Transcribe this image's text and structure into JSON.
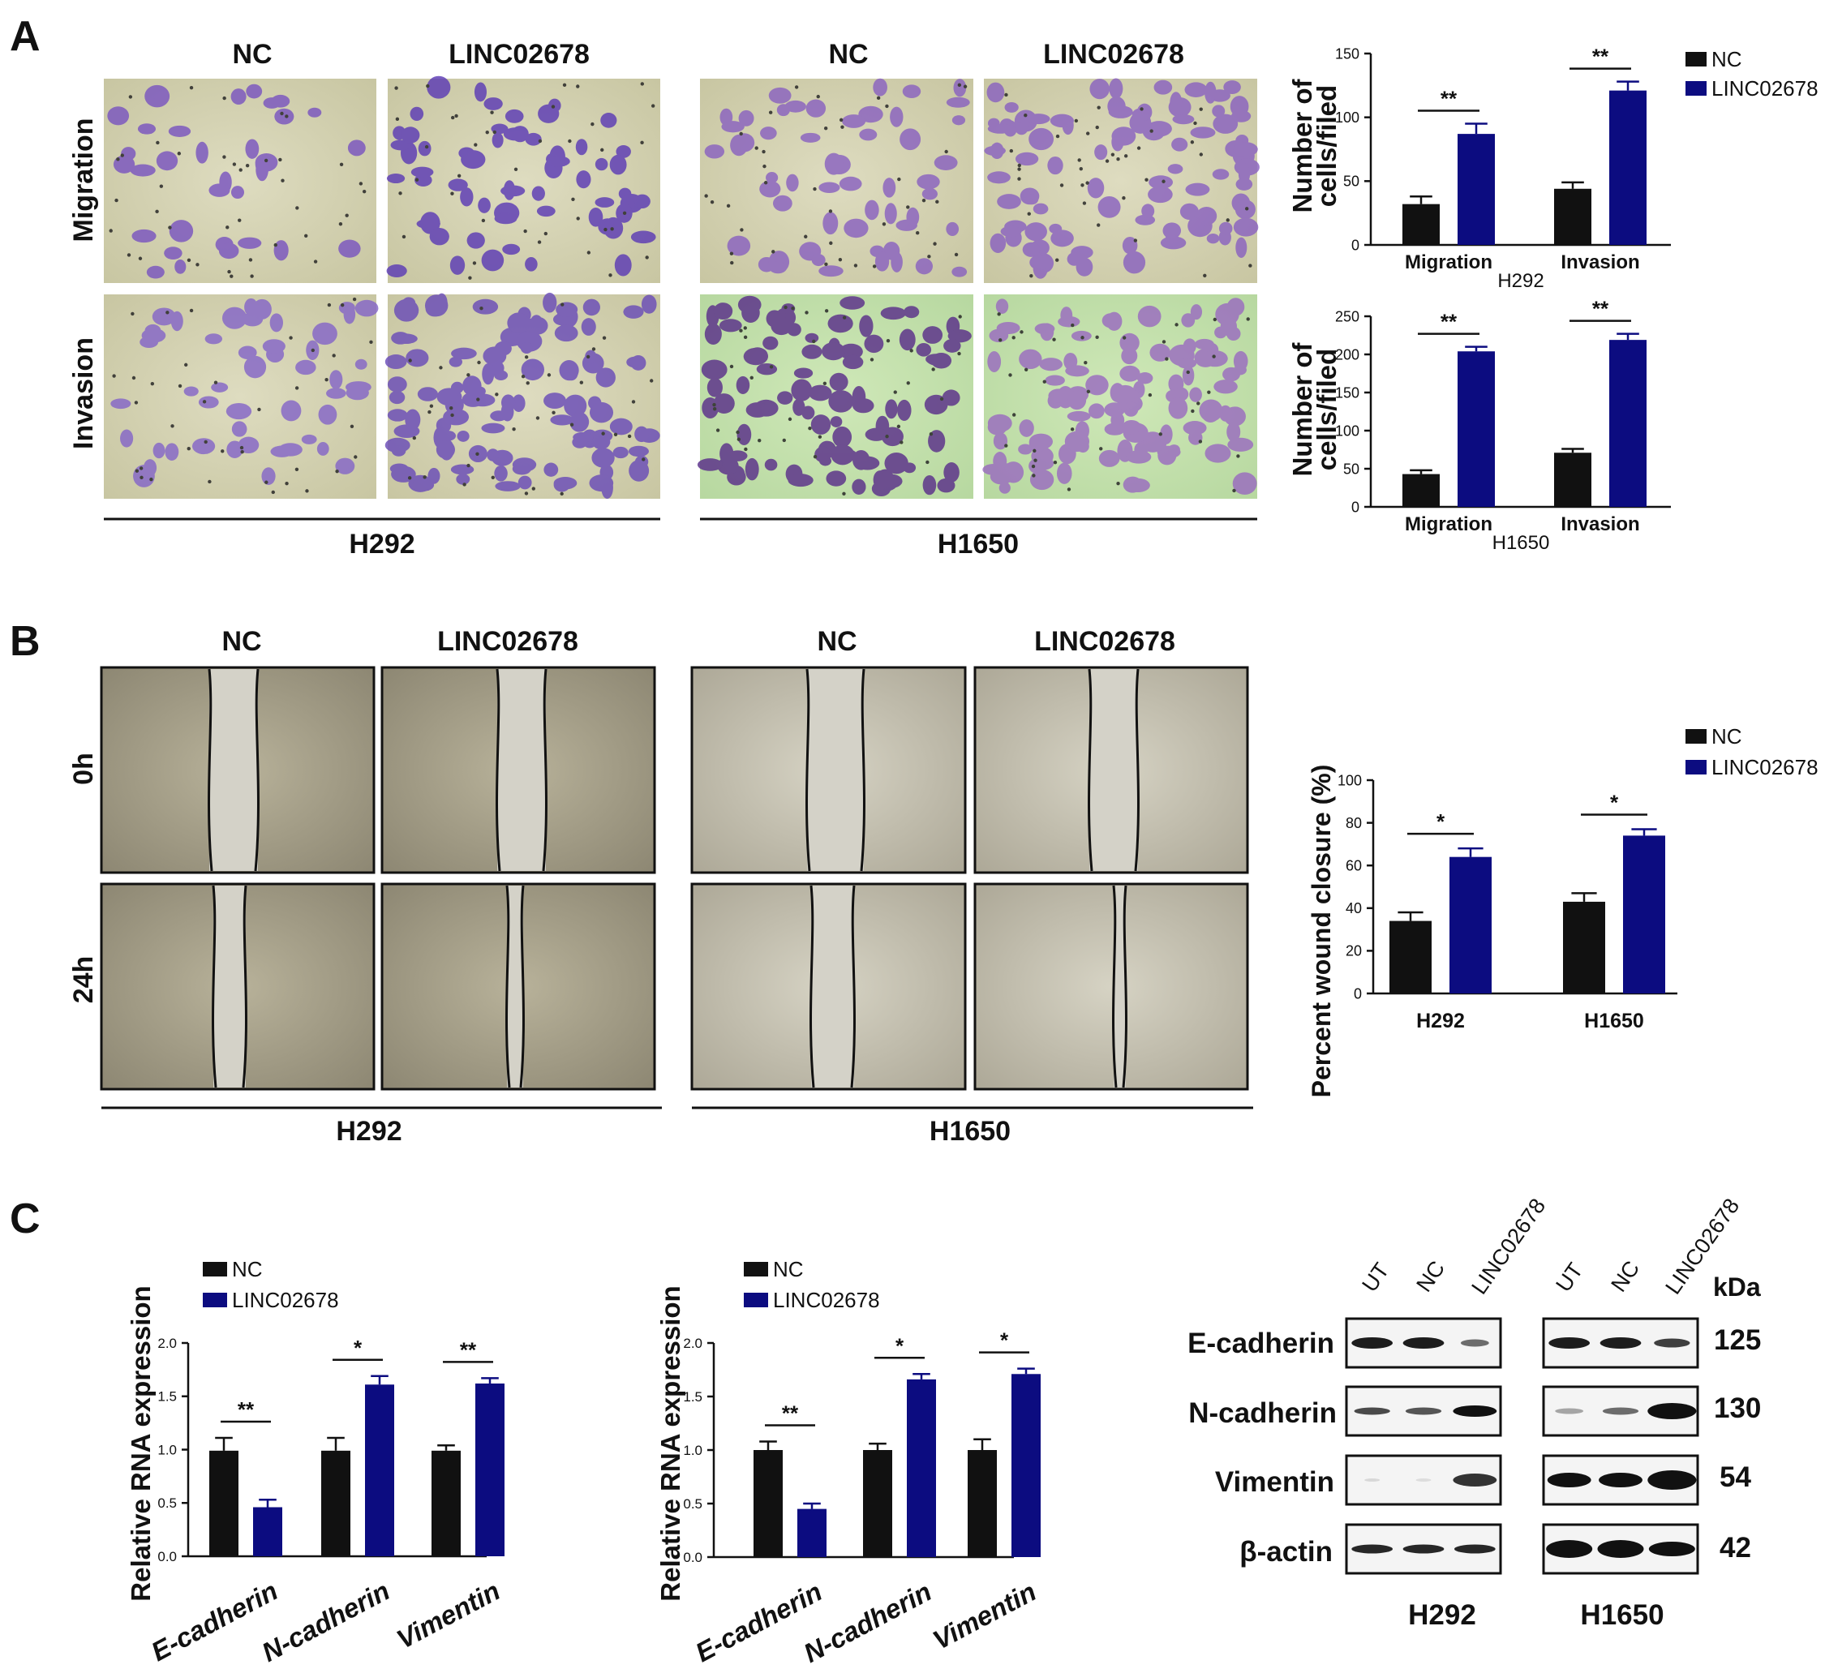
{
  "panel_letters": [
    "A",
    "B",
    "C"
  ],
  "colors": {
    "nc": "#111111",
    "linc": "#0c0c80",
    "axis": "#111111"
  },
  "groups": [
    "NC",
    "LINC02678"
  ],
  "cell_lines": [
    "H292",
    "H1650"
  ],
  "panelA": {
    "row_labels": [
      "Migration",
      "Invasion"
    ],
    "micrographs": [
      {
        "name": "H292 NC Migration"
      },
      {
        "name": "H292 LINC02678 Migration"
      },
      {
        "name": "H1650 NC Migration"
      },
      {
        "name": "H1650 LINC02678 Migration"
      },
      {
        "name": "H292 NC Invasion"
      },
      {
        "name": "H292 LINC02678 Invasion"
      },
      {
        "name": "H1650 NC Invasion"
      },
      {
        "name": "H1650 LINC02678 Invasion"
      }
    ]
  },
  "panelB": {
    "row_labels": [
      "0h",
      "24h"
    ]
  },
  "panelC": {
    "blot": {
      "lane_labels": [
        "UT",
        "NC",
        "LINC02678"
      ],
      "unit": "kDa",
      "proteins": [
        "E-cadherin",
        "N-cadherin",
        "Vimentin",
        "β-actin"
      ],
      "sizes": [
        "125",
        "130",
        "54",
        "42"
      ],
      "cell_lines": [
        "H292",
        "H1650"
      ]
    }
  },
  "chart_data": [
    {
      "id": "a1",
      "type": "bar",
      "categories": [
        "Migration",
        "Invasion"
      ],
      "xlabel": "H292",
      "ylabel": [
        "Number of",
        "cells/filed"
      ],
      "ylim": [
        0,
        150
      ],
      "yticks": [
        0,
        50,
        100,
        150
      ],
      "ytick_labels": [
        "0",
        "50",
        "100",
        "150"
      ],
      "series": [
        {
          "name": "NC",
          "values": [
            32,
            44
          ],
          "errors": [
            6,
            5
          ]
        },
        {
          "name": "LINC02678",
          "values": [
            87,
            121
          ],
          "errors": [
            8,
            7
          ]
        }
      ],
      "significance": [
        "**",
        "**"
      ],
      "legend": {
        "position": "top-right",
        "entries": [
          "NC",
          "LINC02678"
        ]
      }
    },
    {
      "id": "a2",
      "type": "bar",
      "categories": [
        "Migration",
        "Invasion"
      ],
      "xlabel": "H1650",
      "ylabel": [
        "Number of",
        "cells/filed"
      ],
      "ylim": [
        0,
        250
      ],
      "yticks": [
        0,
        50,
        100,
        150,
        200,
        250
      ],
      "ytick_labels": [
        "0",
        "50",
        "100",
        "150",
        "200",
        "250"
      ],
      "series": [
        {
          "name": "NC",
          "values": [
            43,
            71
          ],
          "errors": [
            5,
            5
          ]
        },
        {
          "name": "LINC02678",
          "values": [
            204,
            219
          ],
          "errors": [
            6,
            8
          ]
        }
      ],
      "significance": [
        "**",
        "**"
      ]
    },
    {
      "id": "b",
      "type": "bar",
      "categories": [
        "H292",
        "H1650"
      ],
      "xlabel": "",
      "ylabel": [
        "Percent wound closure (%)"
      ],
      "ylim": [
        0,
        100
      ],
      "yticks": [
        0,
        20,
        40,
        60,
        80,
        100
      ],
      "ytick_labels": [
        "0",
        "20",
        "40",
        "60",
        "80",
        "100"
      ],
      "series": [
        {
          "name": "NC",
          "values": [
            34,
            43
          ],
          "errors": [
            4,
            4
          ]
        },
        {
          "name": "LINC02678",
          "values": [
            64,
            74
          ],
          "errors": [
            4,
            3
          ]
        }
      ],
      "significance": [
        "*",
        "*"
      ],
      "legend": {
        "position": "top-right",
        "entries": [
          "NC",
          "LINC02678"
        ]
      }
    },
    {
      "id": "c1",
      "type": "bar",
      "categories": [
        "E-cadherin",
        "N-cadherin",
        "Vimentin"
      ],
      "xlabel": "",
      "ylabel": [
        "Relative RNA expression"
      ],
      "ylim": [
        0,
        2.0
      ],
      "yticks": [
        0,
        0.5,
        1.0,
        1.5,
        2.0
      ],
      "ytick_labels": [
        "0.0",
        "0.5",
        "1.0",
        "1.5",
        "2.0"
      ],
      "series": [
        {
          "name": "NC",
          "values": [
            0.99,
            0.99,
            0.99
          ],
          "errors": [
            0.12,
            0.12,
            0.05
          ]
        },
        {
          "name": "LINC02678",
          "values": [
            0.46,
            1.61,
            1.62
          ],
          "errors": [
            0.07,
            0.08,
            0.05
          ]
        }
      ],
      "significance": [
        "**",
        "*",
        "**"
      ],
      "legend": {
        "position": "top-left",
        "entries": [
          "NC",
          "LINC02678"
        ]
      }
    },
    {
      "id": "c2",
      "type": "bar",
      "categories": [
        "E-cadherin",
        "N-cadherin",
        "Vimentin"
      ],
      "xlabel": "",
      "ylabel": [
        "Relative RNA expression"
      ],
      "ylim": [
        0,
        2.0
      ],
      "yticks": [
        0,
        0.5,
        1.0,
        1.5,
        2.0
      ],
      "ytick_labels": [
        "0.0",
        "0.5",
        "1.0",
        "1.5",
        "2.0"
      ],
      "series": [
        {
          "name": "NC",
          "values": [
            1.0,
            1.0,
            1.0
          ],
          "errors": [
            0.08,
            0.06,
            0.1
          ]
        },
        {
          "name": "LINC02678",
          "values": [
            0.45,
            1.66,
            1.71
          ],
          "errors": [
            0.05,
            0.05,
            0.05
          ]
        }
      ],
      "significance": [
        "**",
        "*",
        "*"
      ],
      "legend": {
        "position": "top-left",
        "entries": [
          "NC",
          "LINC02678"
        ]
      }
    }
  ]
}
